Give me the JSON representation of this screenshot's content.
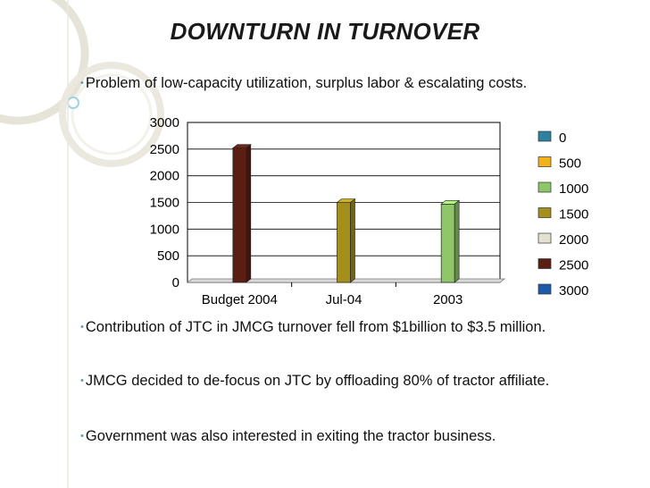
{
  "slide": {
    "title": "DOWNTURN IN TURNOVER",
    "bullets": [
      "Problem of low-capacity utilization, surplus labor & escalating costs.",
      "Contribution of JTC in JMCG turnover fell from $1billion to $3.5 million.",
      "JMCG decided to de-focus on JTC by offloading 80% of tractor affiliate.",
      "Government was also interested in exiting the tractor business."
    ],
    "bullet_marker": "•"
  },
  "colors": {
    "accent": "#9fd3e0",
    "bullet": "#5aa0b5"
  },
  "chart_data": {
    "type": "bar",
    "title": "",
    "xlabel": "",
    "ylabel": "",
    "ylim": [
      0,
      3000
    ],
    "yticks": [
      0,
      500,
      1000,
      1500,
      2000,
      2500,
      3000
    ],
    "categories": [
      "Budget 2004",
      "Jul-04",
      "2003"
    ],
    "series": [
      {
        "name": "0",
        "color": "#2f7f9e",
        "values": [
          0,
          0,
          0
        ]
      },
      {
        "name": "500",
        "color": "#f2b21c",
        "values": [
          0,
          0,
          0
        ]
      },
      {
        "name": "1000",
        "color": "#8fc66a",
        "values": [
          0,
          0,
          1470
        ]
      },
      {
        "name": "1500",
        "color": "#a48f1c",
        "values": [
          0,
          1500,
          0
        ]
      },
      {
        "name": "2000",
        "color": "#e2e1d2",
        "values": [
          0,
          0,
          0
        ]
      },
      {
        "name": "2500",
        "color": "#5a1e12",
        "values": [
          2520,
          0,
          0
        ]
      },
      {
        "name": "3000",
        "color": "#1f5aa8",
        "values": [
          0,
          0,
          0
        ]
      }
    ],
    "legend_position": "right",
    "grid": true,
    "view": "3d-bar"
  }
}
